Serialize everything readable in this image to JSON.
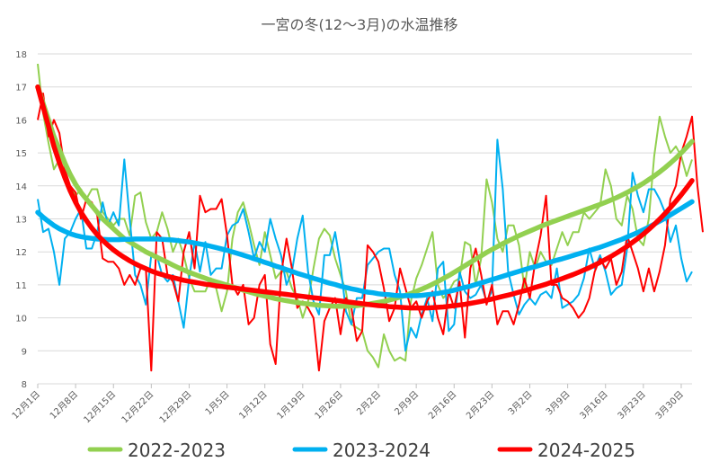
{
  "chart_data": {
    "type": "line",
    "title": "一宮の冬(12～3月)の水温推移",
    "xlabel": "",
    "ylabel": "",
    "ylim": [
      8,
      18
    ],
    "yticks": [
      8,
      9,
      10,
      11,
      12,
      13,
      14,
      15,
      16,
      17,
      18
    ],
    "grid": true,
    "legend_placement": "bottom",
    "x_tick_labels": [
      "12月1日",
      "12月8日",
      "12月15日",
      "12月22日",
      "12月29日",
      "1月5日",
      "1月12日",
      "1月19日",
      "1月26日",
      "2月2日",
      "2月9日",
      "2月16日",
      "2月23日",
      "3月2日",
      "3月9日",
      "3月16日",
      "3月23日",
      "3月30日"
    ],
    "x_tick_day_index": [
      0,
      7,
      14,
      21,
      28,
      35,
      42,
      49,
      56,
      63,
      70,
      77,
      84,
      91,
      98,
      105,
      112,
      119
    ],
    "day_count": 122,
    "series": [
      {
        "name": "2022-2023",
        "color": "#92D050",
        "daily": [
          17.7,
          16.2,
          15.3,
          14.5,
          14.8,
          14.2,
          14.0,
          13.7,
          13.9,
          13.6,
          13.9,
          13.9,
          13.2,
          13.0,
          12.8,
          13.0,
          13.0,
          12.5,
          13.7,
          13.8,
          12.9,
          12.4,
          12.6,
          13.2,
          12.7,
          12.0,
          12.4,
          11.9,
          11.2,
          10.8,
          10.8,
          10.8,
          11.2,
          10.9,
          10.2,
          10.8,
          12.4,
          13.2,
          13.5,
          12.9,
          12.2,
          11.6,
          12.6,
          11.9,
          11.2,
          11.4,
          11.4,
          10.9,
          10.6,
          10.0,
          10.5,
          11.5,
          12.4,
          12.7,
          12.5,
          11.8,
          11.3,
          10.8,
          9.8,
          9.7,
          9.6,
          9.0,
          8.8,
          8.5,
          9.5,
          9.0,
          8.7,
          8.8,
          8.7,
          10.5,
          11.2,
          11.6,
          12.1,
          12.6,
          11.0,
          10.6,
          10.8,
          11.1,
          11.2,
          12.3,
          12.2,
          11.0,
          11.8,
          14.2,
          13.5,
          12.4,
          12.0,
          12.8,
          12.8,
          12.2,
          10.9,
          12.0,
          11.5,
          12.0,
          11.7,
          11.6,
          12.1,
          12.6,
          12.2,
          12.6,
          12.6,
          13.2,
          13.0,
          13.2,
          13.4,
          14.5,
          14.0,
          13.0,
          12.8,
          13.7,
          13.3,
          12.4,
          12.2,
          13.0,
          14.9,
          16.1,
          15.5,
          15.0,
          15.2,
          14.9,
          14.3,
          14.8
        ],
        "trend": [
          17.0,
          16.5,
          16.0,
          15.5,
          15.1,
          14.7,
          14.35,
          14.05,
          13.8,
          13.6,
          13.4,
          13.2,
          13.0,
          12.85,
          12.7,
          12.55,
          12.4,
          12.3,
          12.2,
          12.1,
          12.0,
          11.92,
          11.84,
          11.76,
          11.68,
          11.6,
          11.52,
          11.45,
          11.38,
          11.32,
          11.26,
          11.2,
          11.14,
          11.09,
          11.04,
          10.99,
          10.94,
          10.89,
          10.84,
          10.79,
          10.74,
          10.7,
          10.66,
          10.62,
          10.58,
          10.55,
          10.52,
          10.49,
          10.46,
          10.44,
          10.42,
          10.4,
          10.38,
          10.37,
          10.36,
          10.35,
          10.35,
          10.35,
          10.36,
          10.37,
          10.39,
          10.41,
          10.44,
          10.47,
          10.5,
          10.54,
          10.58,
          10.63,
          10.68,
          10.74,
          10.8,
          10.87,
          10.94,
          11.02,
          11.1,
          11.19,
          11.28,
          11.38,
          11.48,
          11.58,
          11.68,
          11.78,
          11.88,
          11.98,
          12.07,
          12.16,
          12.25,
          12.33,
          12.41,
          12.49,
          12.56,
          12.63,
          12.7,
          12.77,
          12.84,
          12.9,
          12.96,
          13.02,
          13.08,
          13.14,
          13.2,
          13.26,
          13.32,
          13.38,
          13.44,
          13.5,
          13.57,
          13.64,
          13.72,
          13.8,
          13.89,
          13.98,
          14.08,
          14.19,
          14.3,
          14.42,
          14.55,
          14.69,
          14.84,
          15.0,
          15.17,
          15.35
        ]
      },
      {
        "name": "2023-2024",
        "color": "#00B0F0",
        "daily": [
          13.6,
          12.6,
          12.7,
          12.0,
          11.0,
          12.4,
          12.6,
          13.0,
          13.3,
          12.1,
          12.1,
          12.6,
          13.5,
          12.8,
          13.2,
          12.8,
          14.8,
          13.0,
          11.3,
          11.0,
          10.4,
          11.9,
          11.9,
          11.3,
          11.1,
          11.3,
          10.5,
          9.7,
          11.2,
          12.3,
          11.4,
          12.3,
          11.3,
          11.5,
          11.5,
          12.5,
          12.8,
          12.9,
          13.3,
          12.6,
          11.8,
          12.3,
          12.0,
          13.0,
          12.4,
          11.9,
          11.0,
          11.4,
          12.4,
          13.1,
          11.4,
          10.5,
          10.1,
          11.9,
          11.9,
          12.6,
          11.6,
          10.2,
          9.8,
          10.6,
          10.6,
          11.6,
          11.8,
          12.0,
          12.1,
          12.1,
          11.3,
          10.8,
          9.0,
          9.7,
          9.4,
          10.1,
          10.6,
          9.9,
          11.5,
          11.7,
          9.6,
          9.8,
          11.4,
          10.8,
          10.6,
          10.7,
          11.0,
          10.5,
          10.8,
          15.4,
          13.9,
          11.4,
          10.7,
          10.1,
          10.4,
          10.6,
          10.4,
          10.7,
          10.8,
          10.6,
          11.5,
          10.3,
          10.4,
          10.5,
          10.7,
          11.2,
          12.1,
          11.5,
          11.9,
          11.4,
          10.7,
          10.9,
          11.0,
          12.1,
          14.4,
          13.7,
          13.2,
          13.9,
          13.9,
          13.6,
          13.2,
          12.3,
          12.8,
          11.8,
          11.1,
          11.4
        ],
        "trend": [
          13.2,
          13.05,
          12.92,
          12.8,
          12.7,
          12.62,
          12.55,
          12.5,
          12.46,
          12.43,
          12.41,
          12.39,
          12.38,
          12.37,
          12.37,
          12.37,
          12.38,
          12.38,
          12.39,
          12.39,
          12.39,
          12.39,
          12.39,
          12.38,
          12.37,
          12.36,
          12.34,
          12.32,
          12.3,
          12.27,
          12.24,
          12.21,
          12.17,
          12.13,
          12.09,
          12.05,
          12.0,
          11.95,
          11.9,
          11.85,
          11.79,
          11.74,
          11.68,
          11.63,
          11.57,
          11.52,
          11.46,
          11.41,
          11.35,
          11.3,
          11.25,
          11.2,
          11.15,
          11.1,
          11.05,
          11.01,
          10.96,
          10.92,
          10.88,
          10.85,
          10.81,
          10.78,
          10.76,
          10.73,
          10.71,
          10.7,
          10.68,
          10.67,
          10.67,
          10.67,
          10.67,
          10.68,
          10.7,
          10.72,
          10.74,
          10.77,
          10.8,
          10.84,
          10.88,
          10.92,
          10.96,
          11.01,
          11.06,
          11.11,
          11.16,
          11.21,
          11.26,
          11.31,
          11.36,
          11.41,
          11.46,
          11.51,
          11.55,
          11.6,
          11.65,
          11.7,
          11.75,
          11.79,
          11.84,
          11.89,
          11.94,
          11.99,
          12.04,
          12.09,
          12.14,
          12.2,
          12.26,
          12.32,
          12.38,
          12.45,
          12.52,
          12.59,
          12.67,
          12.75,
          12.84,
          12.93,
          13.02,
          13.12,
          13.22,
          13.32,
          13.42,
          13.52
        ]
      },
      {
        "name": "2024-2025",
        "color": "#FF0000",
        "daily": [
          16.0,
          16.8,
          15.5,
          16.0,
          15.6,
          14.5,
          14.0,
          13.8,
          13.0,
          13.6,
          13.5,
          13.1,
          11.8,
          11.7,
          11.7,
          11.5,
          11.0,
          11.3,
          11.0,
          11.5,
          11.5,
          8.4,
          12.6,
          12.4,
          11.3,
          11.1,
          10.5,
          12.0,
          12.6,
          11.5,
          13.7,
          13.2,
          13.3,
          13.3,
          13.6,
          12.5,
          11.0,
          10.7,
          11.0,
          9.8,
          10.0,
          11.0,
          11.3,
          9.2,
          8.6,
          11.3,
          12.4,
          11.5,
          10.3,
          10.5,
          10.3,
          10.0,
          8.4,
          9.9,
          10.3,
          10.6,
          9.5,
          10.6,
          10.3,
          9.3,
          9.6,
          12.2,
          12.0,
          11.7,
          10.9,
          9.9,
          10.3,
          11.5,
          10.9,
          10.3,
          10.5,
          10.0,
          10.5,
          10.8,
          10.0,
          9.5,
          10.8,
          10.3,
          11.1,
          9.4,
          11.5,
          12.1,
          11.3,
          10.4,
          11.0,
          9.8,
          10.2,
          10.2,
          9.8,
          10.4,
          11.2,
          10.6,
          11.7,
          12.5,
          13.7,
          11.0,
          11.0,
          10.6,
          10.5,
          10.3,
          10.0,
          10.2,
          10.6,
          11.4,
          11.8,
          11.5,
          11.8,
          11.0,
          11.4,
          12.5,
          12.0,
          11.5,
          10.8,
          11.5,
          10.8,
          11.4,
          12.2,
          13.6,
          14.0,
          15.0,
          15.5,
          16.1,
          14.0,
          12.6
        ],
        "trend": [
          17.0,
          16.4,
          15.8,
          15.2,
          14.7,
          14.25,
          13.85,
          13.5,
          13.2,
          12.95,
          12.72,
          12.52,
          12.35,
          12.2,
          12.06,
          11.94,
          11.83,
          11.73,
          11.64,
          11.56,
          11.49,
          11.42,
          11.36,
          11.31,
          11.26,
          11.22,
          11.18,
          11.14,
          11.11,
          11.08,
          11.05,
          11.02,
          11.0,
          10.97,
          10.95,
          10.93,
          10.91,
          10.89,
          10.87,
          10.85,
          10.83,
          10.81,
          10.79,
          10.77,
          10.75,
          10.73,
          10.71,
          10.69,
          10.67,
          10.65,
          10.63,
          10.61,
          10.59,
          10.57,
          10.55,
          10.53,
          10.51,
          10.49,
          10.47,
          10.45,
          10.43,
          10.41,
          10.39,
          10.37,
          10.36,
          10.34,
          10.33,
          10.32,
          10.31,
          10.3,
          10.3,
          10.3,
          10.3,
          10.31,
          10.32,
          10.33,
          10.35,
          10.37,
          10.39,
          10.41,
          10.44,
          10.47,
          10.5,
          10.53,
          10.57,
          10.61,
          10.65,
          10.69,
          10.73,
          10.78,
          10.82,
          10.87,
          10.92,
          10.97,
          11.02,
          11.08,
          11.13,
          11.19,
          11.25,
          11.31,
          11.38,
          11.45,
          11.52,
          11.6,
          11.68,
          11.77,
          11.86,
          11.96,
          12.06,
          12.17,
          12.29,
          12.41,
          12.54,
          12.68,
          12.83,
          12.99,
          13.16,
          13.34,
          13.53,
          13.73,
          13.94,
          14.16
        ]
      }
    ]
  }
}
